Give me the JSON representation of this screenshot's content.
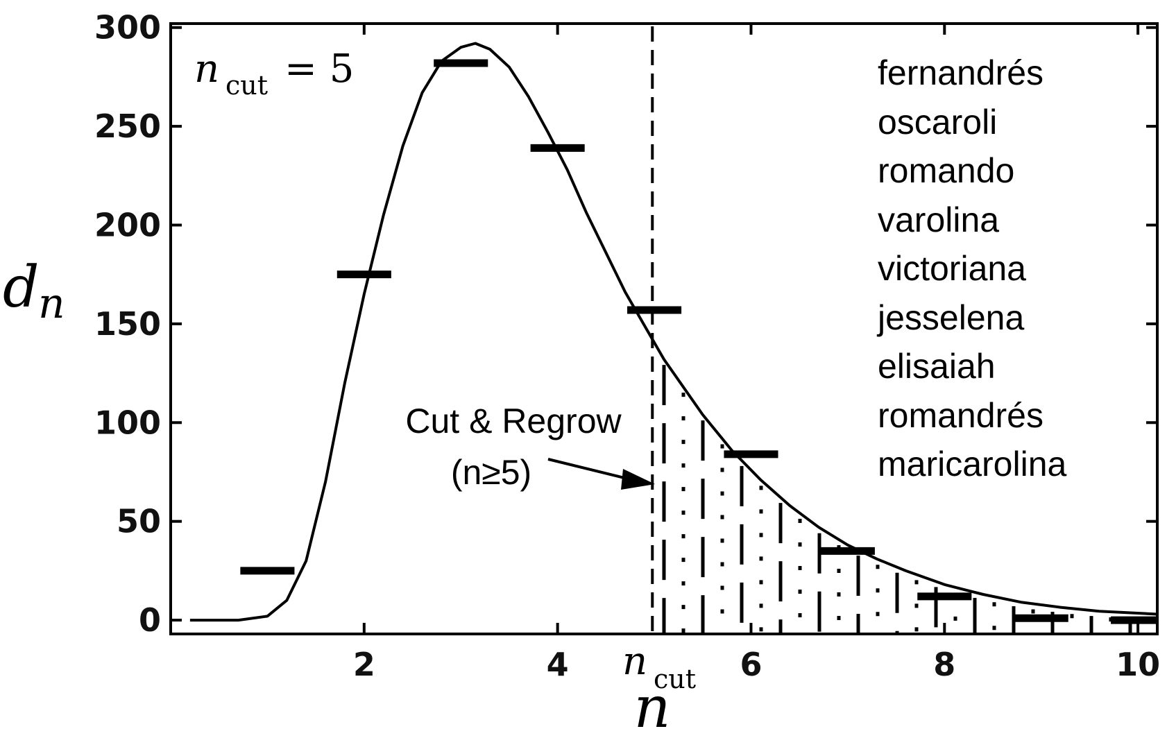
{
  "chart_data": {
    "type": "scatter",
    "xlabel": "n",
    "ylabel": "d_n",
    "ylabel_main": "d",
    "ylabel_sub": "n",
    "xlim": [
      0,
      10.2
    ],
    "ylim": [
      -7,
      302
    ],
    "x_ticks": [
      2,
      4,
      6,
      8,
      10
    ],
    "y_ticks": [
      0,
      50,
      100,
      150,
      200,
      250,
      300
    ],
    "x_special_tick": {
      "value": 4.98,
      "label_main": "n",
      "label_sub": "cut"
    },
    "series": [
      {
        "marker": "horizontal-bar",
        "points": [
          {
            "x": 1,
            "y": 25
          },
          {
            "x": 2,
            "y": 175
          },
          {
            "x": 3,
            "y": 282
          },
          {
            "x": 4,
            "y": 239
          },
          {
            "x": 5,
            "y": 157
          },
          {
            "x": 6,
            "y": 84
          },
          {
            "x": 7,
            "y": 35
          },
          {
            "x": 8,
            "y": 12
          },
          {
            "x": 9,
            "y": 1
          },
          {
            "x": 10,
            "y": 0
          }
        ]
      },
      {
        "type": "line",
        "style": "solid",
        "points": [
          [
            0.2,
            0
          ],
          [
            0.7,
            0
          ],
          [
            1.0,
            2
          ],
          [
            1.2,
            10
          ],
          [
            1.4,
            30
          ],
          [
            1.6,
            70
          ],
          [
            1.8,
            120
          ],
          [
            2.0,
            165
          ],
          [
            2.2,
            205
          ],
          [
            2.4,
            240
          ],
          [
            2.6,
            267
          ],
          [
            2.8,
            283
          ],
          [
            3.0,
            290
          ],
          [
            3.15,
            292
          ],
          [
            3.3,
            289
          ],
          [
            3.5,
            280
          ],
          [
            3.7,
            265
          ],
          [
            3.9,
            247
          ],
          [
            4.1,
            228
          ],
          [
            4.3,
            206
          ],
          [
            4.5,
            186
          ],
          [
            4.7,
            166
          ],
          [
            4.9,
            149
          ],
          [
            5.1,
            132
          ],
          [
            5.3,
            118
          ],
          [
            5.5,
            104
          ],
          [
            5.8,
            86
          ],
          [
            6.1,
            71
          ],
          [
            6.4,
            58
          ],
          [
            6.7,
            47
          ],
          [
            7.0,
            38
          ],
          [
            7.3,
            31
          ],
          [
            7.6,
            25
          ],
          [
            8.0,
            18
          ],
          [
            8.4,
            13
          ],
          [
            8.8,
            9
          ],
          [
            9.2,
            6.5
          ],
          [
            9.6,
            4.5
          ],
          [
            10.2,
            3
          ]
        ]
      }
    ],
    "cut_line": {
      "x": 4.98,
      "style": "dashed"
    },
    "shaded_region": {
      "from_x": 5.1,
      "to_x": 10.2,
      "pattern": "dash-dot vertical hatching"
    },
    "annotations": {
      "ncut_main": "n",
      "ncut_sub": "cut",
      "ncut_eq": "= 5",
      "arrow_line1": "Cut & Regrow",
      "arrow_line2": "(n≥5)",
      "arrow_target": {
        "x": 4.9,
        "y": 70
      }
    },
    "names": [
      "fernandrés",
      "oscaroli",
      "romando",
      "varolina",
      "victoriana",
      "jesselena",
      "elisaiah",
      "romandrés",
      "maricarolina"
    ],
    "colors": {
      "ink": "#000000",
      "background": "#ffffff"
    }
  }
}
